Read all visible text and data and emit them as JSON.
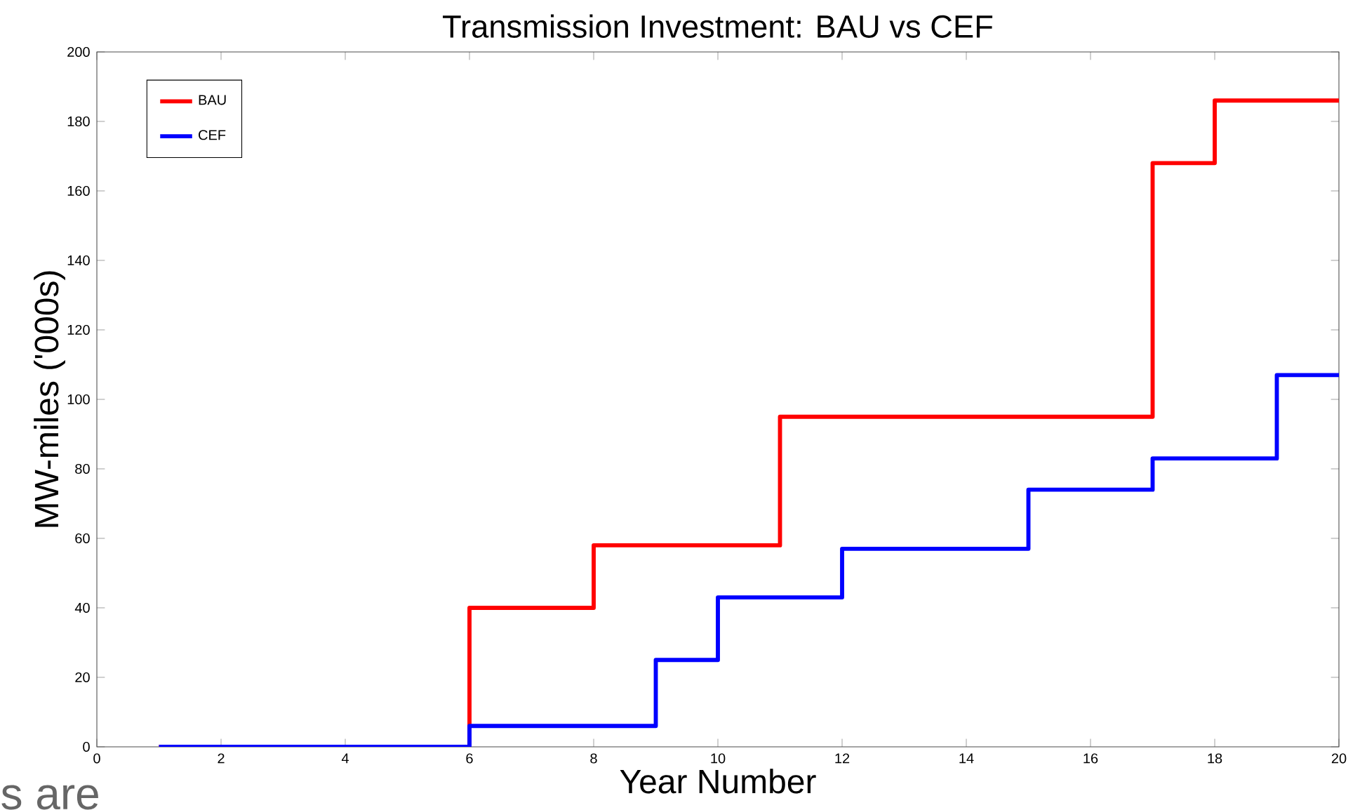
{
  "chart_data": {
    "type": "step",
    "title": "Transmission Investment: BAU vs CEF",
    "xlabel": "Year Number",
    "ylabel": "MW-miles ('000s)",
    "annotations": [
      "s are"
    ],
    "series": [
      {
        "name": "BAU",
        "color": "#ff0000",
        "x": [
          1,
          6,
          8,
          11,
          17,
          18,
          20
        ],
        "values": [
          0,
          40,
          58,
          95,
          168,
          186,
          186
        ]
      },
      {
        "name": "CEF",
        "color": "#0000ff",
        "x": [
          1,
          6,
          9,
          10,
          12,
          15,
          17,
          19,
          20
        ],
        "values": [
          0,
          6,
          25,
          43,
          57,
          74,
          83,
          107,
          107
        ]
      }
    ],
    "xlim": [
      0,
      20
    ],
    "ylim": [
      0,
      200
    ],
    "xticks": [
      0,
      2,
      4,
      6,
      8,
      10,
      12,
      14,
      16,
      18,
      20
    ],
    "yticks": [
      0,
      20,
      40,
      60,
      80,
      100,
      120,
      140,
      160,
      180,
      200
    ],
    "grid": false,
    "legend": "top left",
    "marker": "none",
    "line_style": "solid"
  }
}
